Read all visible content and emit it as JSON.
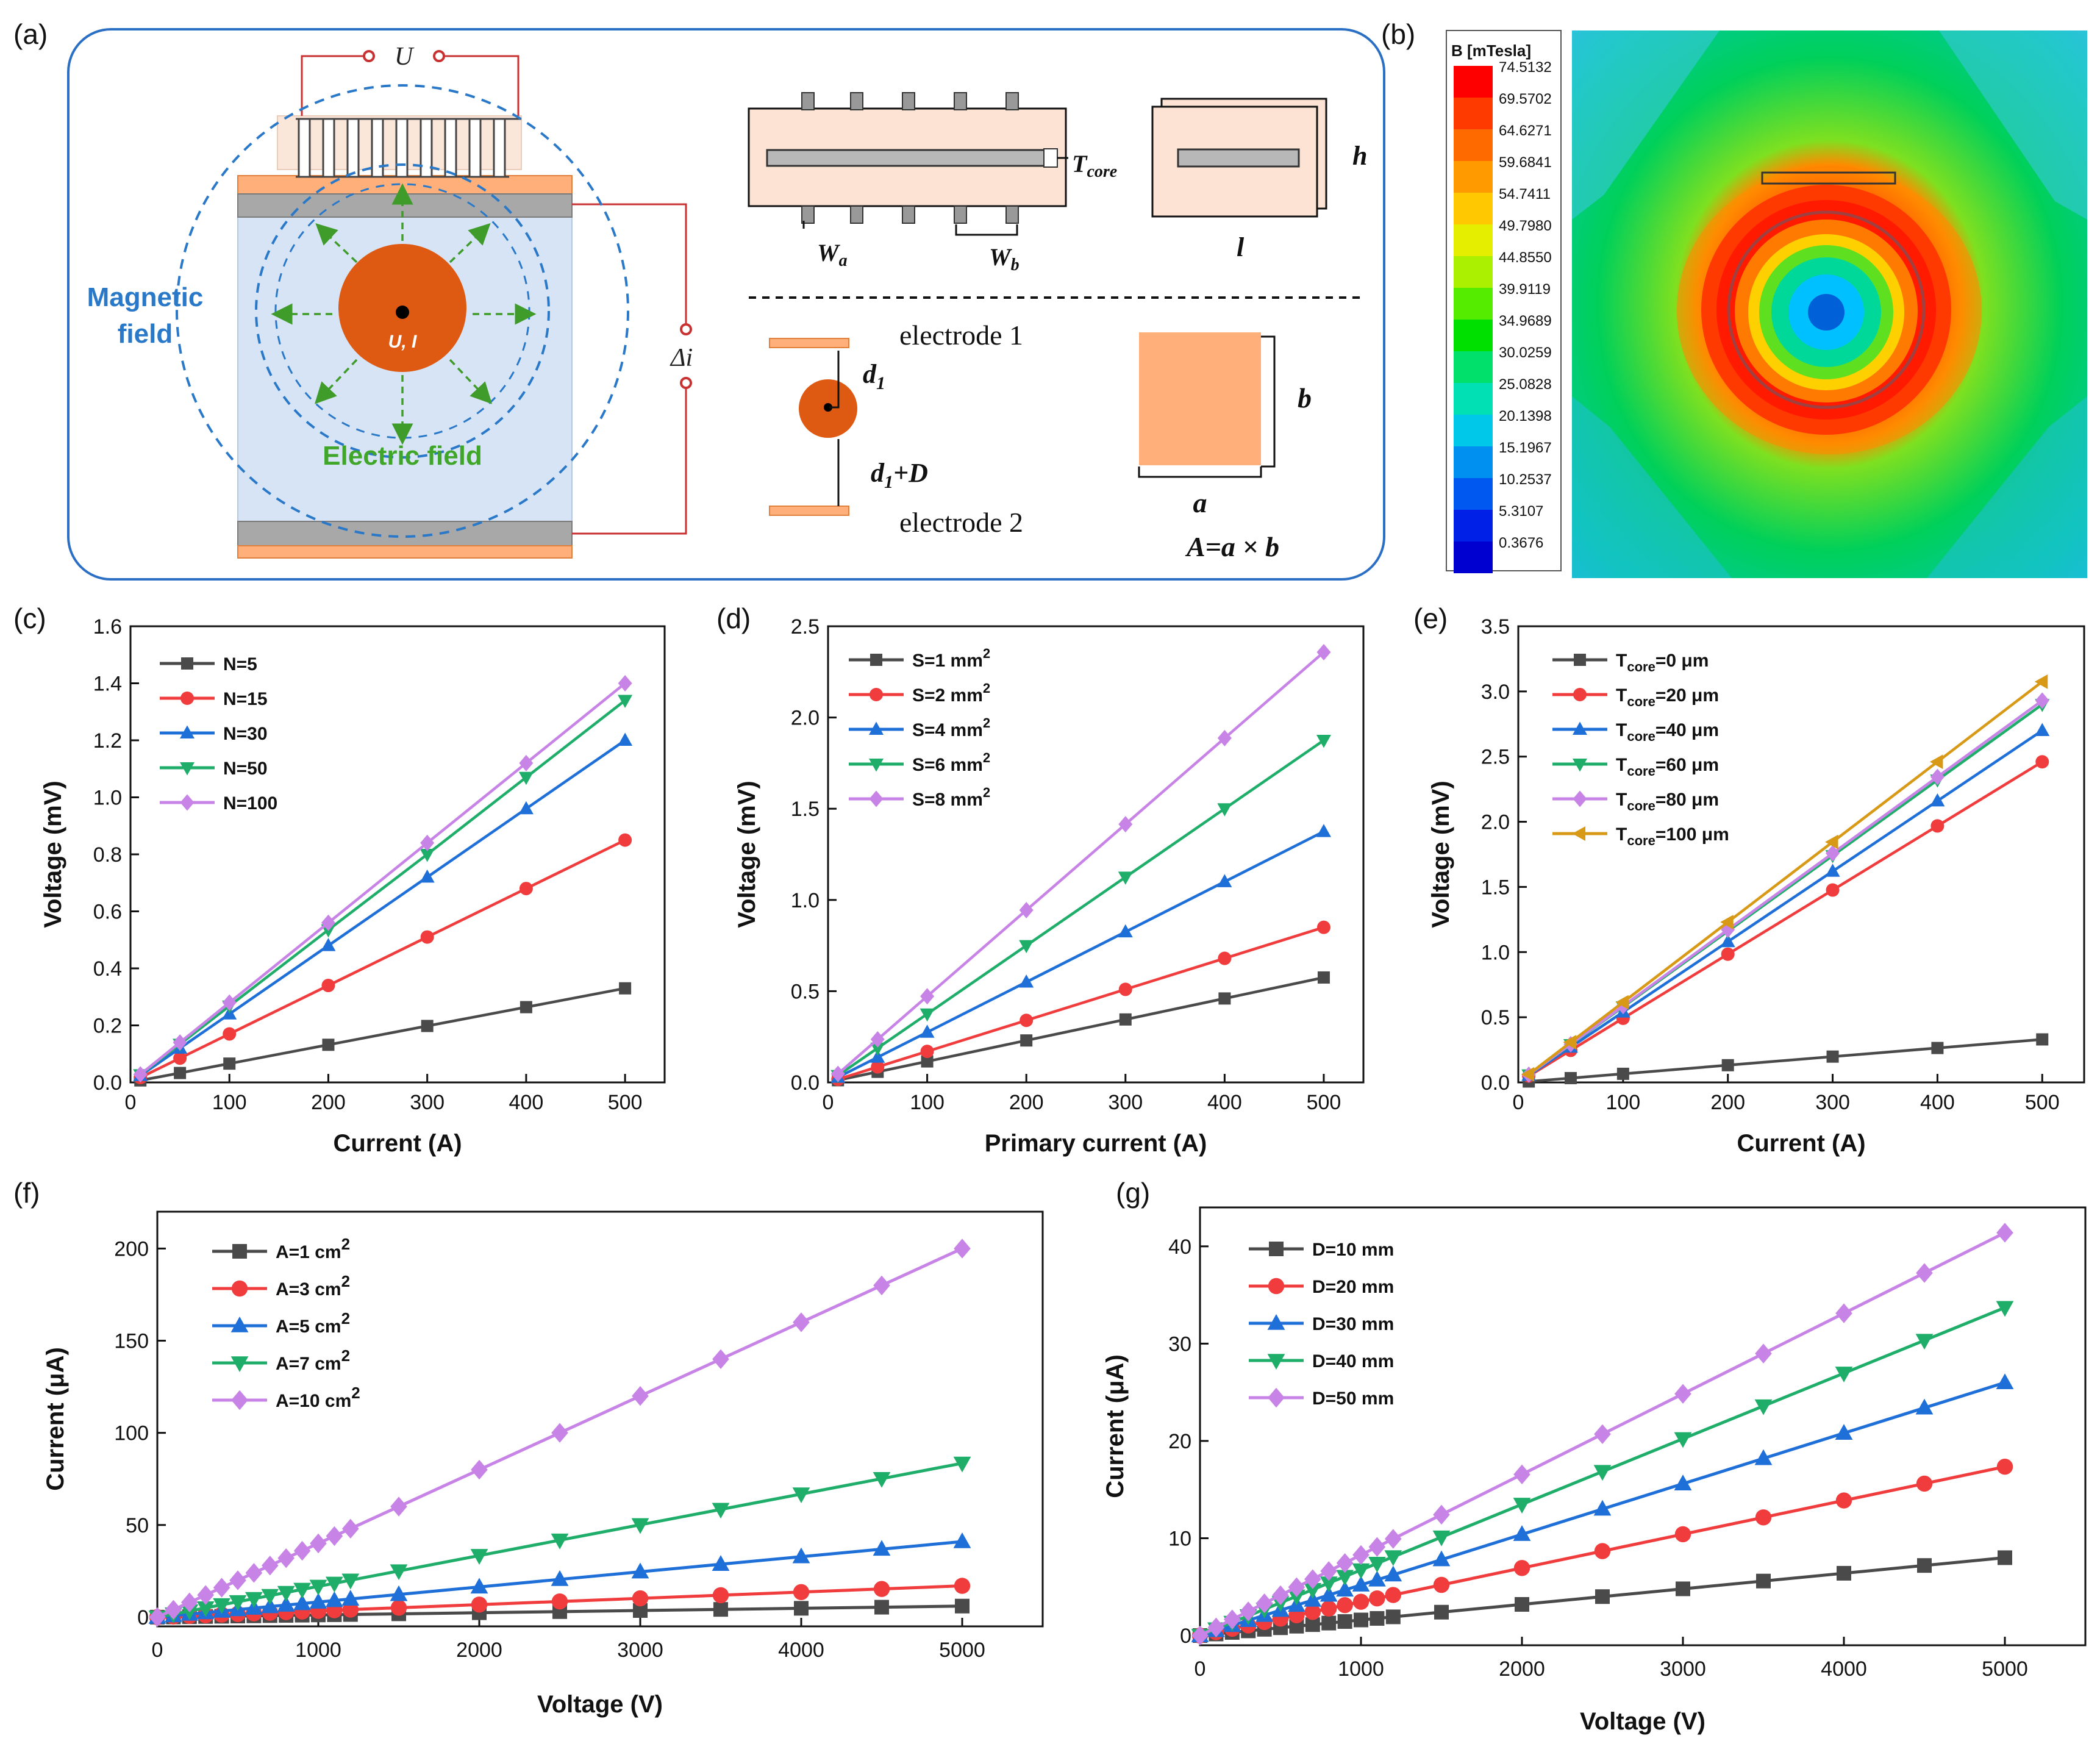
{
  "panel_labels": [
    "(a)",
    "(b)",
    "(c)",
    "(d)",
    "(e)",
    "(f)",
    "(g)"
  ],
  "schematic": {
    "voltage_label": "U",
    "magnetic_field_line1": "Magnetic",
    "magnetic_field_line2": "field",
    "electric_field_label": "Electric field",
    "conductor_label": "U, I",
    "delta_i_label": "Δi",
    "t_core_label": "T",
    "t_core_sub": "core",
    "wa_label": "W",
    "wa_sub": "a",
    "wb_label": "W",
    "wb_sub": "b",
    "h_label": "h",
    "l_label": "l",
    "electrode1_label": "electrode 1",
    "electrode2_label": "electrode 2",
    "d1_label": "d",
    "d1_sub": "1",
    "d1d_label": "d",
    "d1d_sub": "1",
    "d1d_suffix": "+D",
    "b_label": "b",
    "a_label": "a",
    "area_formula": "A=a × b"
  },
  "colorbar": {
    "title": "B [mTesla]",
    "labels": [
      "74.5132",
      "69.5702",
      "64.6271",
      "59.6841",
      "54.7411",
      "49.7980",
      "44.8550",
      "39.9119",
      "34.9689",
      "30.0259",
      "25.0828",
      "20.1398",
      "15.1967",
      "10.2537",
      "5.3107",
      "0.3676"
    ],
    "colors": [
      "#ff0000",
      "#ff3a00",
      "#ff6a00",
      "#ff9a00",
      "#ffc800",
      "#e6ee00",
      "#aaf000",
      "#55ec00",
      "#00e000",
      "#00e06a",
      "#00e0b4",
      "#00c8e8",
      "#0090f0",
      "#0058f0",
      "#0020e8",
      "#0000d0"
    ]
  },
  "chart_data": [
    {
      "id": "c",
      "type": "line",
      "xlabel": "Current (A)",
      "ylabel": "Voltage (mV)",
      "xlim": [
        0,
        540
      ],
      "ylim": [
        0,
        1.6
      ],
      "xticks": [
        "0",
        "100",
        "200",
        "300",
        "400",
        "500"
      ],
      "yticks": [
        "0.0",
        "0.2",
        "0.4",
        "0.6",
        "0.8",
        "1.0",
        "1.2",
        "1.4",
        "1.6"
      ],
      "x": [
        10,
        50,
        100,
        200,
        300,
        400,
        500
      ],
      "series": [
        {
          "name": "N=5",
          "color": "#4a4a4a",
          "marker": "square",
          "values": [
            0.007,
            0.033,
            0.066,
            0.132,
            0.198,
            0.264,
            0.33
          ]
        },
        {
          "name": "N=15",
          "color": "#f03c3c",
          "marker": "circle",
          "values": [
            0.017,
            0.085,
            0.17,
            0.34,
            0.51,
            0.68,
            0.85
          ]
        },
        {
          "name": "N=30",
          "color": "#1f6fd8",
          "marker": "triangle-up",
          "values": [
            0.024,
            0.12,
            0.24,
            0.48,
            0.72,
            0.96,
            1.2
          ]
        },
        {
          "name": "N=50",
          "color": "#1fae6a",
          "marker": "triangle-down",
          "values": [
            0.027,
            0.134,
            0.268,
            0.535,
            0.8,
            1.07,
            1.34
          ]
        },
        {
          "name": "N=100",
          "color": "#c883e6",
          "marker": "diamond",
          "values": [
            0.028,
            0.14,
            0.28,
            0.56,
            0.84,
            1.12,
            1.4
          ]
        }
      ]
    },
    {
      "id": "d",
      "type": "line",
      "xlabel": "Primary current (A)",
      "ylabel": "Voltage (mV)",
      "xlim": [
        0,
        540
      ],
      "ylim": [
        0,
        2.5
      ],
      "xticks": [
        "0",
        "100",
        "200",
        "300",
        "400",
        "500"
      ],
      "yticks": [
        "0.0",
        "0.5",
        "1.0",
        "1.5",
        "2.0",
        "2.5"
      ],
      "x": [
        10,
        50,
        100,
        200,
        300,
        400,
        500
      ],
      "series": [
        {
          "name": "S=1 mm",
          "sup": "2",
          "color": "#4a4a4a",
          "marker": "square",
          "values": [
            0.012,
            0.058,
            0.115,
            0.23,
            0.345,
            0.46,
            0.575
          ]
        },
        {
          "name": "S=2 mm",
          "sup": "2",
          "color": "#f03c3c",
          "marker": "circle",
          "values": [
            0.017,
            0.085,
            0.17,
            0.34,
            0.51,
            0.68,
            0.85
          ]
        },
        {
          "name": "S=4 mm",
          "sup": "2",
          "color": "#1f6fd8",
          "marker": "triangle-up",
          "values": [
            0.028,
            0.138,
            0.275,
            0.55,
            0.825,
            1.1,
            1.375
          ]
        },
        {
          "name": "S=6 mm",
          "sup": "2",
          "color": "#1fae6a",
          "marker": "triangle-down",
          "values": [
            0.038,
            0.188,
            0.375,
            0.75,
            1.125,
            1.5,
            1.875
          ]
        },
        {
          "name": "S=8 mm",
          "sup": "2",
          "color": "#c883e6",
          "marker": "diamond",
          "values": [
            0.047,
            0.236,
            0.472,
            0.944,
            1.415,
            1.887,
            2.358
          ]
        }
      ]
    },
    {
      "id": "e",
      "type": "line",
      "xlabel": "Current (A)",
      "ylabel": "Voltage (mV)",
      "xlim": [
        0,
        540
      ],
      "ylim": [
        0,
        3.5
      ],
      "xticks": [
        "0",
        "100",
        "200",
        "300",
        "400",
        "500"
      ],
      "yticks": [
        "0.0",
        "0.5",
        "1.0",
        "1.5",
        "2.0",
        "2.5",
        "3.0",
        "3.5"
      ],
      "x": [
        10,
        50,
        100,
        200,
        300,
        400,
        500
      ],
      "series": [
        {
          "name": "T",
          "sub": "core",
          "suffix": "=0 μm",
          "color": "#4a4a4a",
          "marker": "square",
          "values": [
            0.007,
            0.033,
            0.066,
            0.132,
            0.198,
            0.264,
            0.33
          ]
        },
        {
          "name": "T",
          "sub": "core",
          "suffix": "=20 μm",
          "color": "#f03c3c",
          "marker": "circle",
          "values": [
            0.049,
            0.246,
            0.492,
            0.984,
            1.476,
            1.968,
            2.46
          ]
        },
        {
          "name": "T",
          "sub": "core",
          "suffix": "=40 μm",
          "color": "#1f6fd8",
          "marker": "triangle-up",
          "values": [
            0.054,
            0.27,
            0.54,
            1.08,
            1.62,
            2.16,
            2.7
          ]
        },
        {
          "name": "T",
          "sub": "core",
          "suffix": "=60 μm",
          "color": "#1fae6a",
          "marker": "triangle-down",
          "values": [
            0.058,
            0.29,
            0.58,
            1.16,
            1.74,
            2.32,
            2.9
          ]
        },
        {
          "name": "T",
          "sub": "core",
          "suffix": "=80 μm",
          "color": "#c883e6",
          "marker": "diamond",
          "values": [
            0.059,
            0.293,
            0.586,
            1.172,
            1.758,
            2.344,
            2.93
          ]
        },
        {
          "name": "T",
          "sub": "core",
          "suffix": "=100 μm",
          "color": "#d89a16",
          "marker": "triangle-left",
          "values": [
            0.062,
            0.308,
            0.615,
            1.23,
            1.845,
            2.46,
            3.075
          ]
        }
      ]
    },
    {
      "id": "f",
      "type": "line",
      "xlabel": "Voltage (V)",
      "ylabel": "Current (μA)",
      "xlim": [
        0,
        5500
      ],
      "ylim": [
        -5,
        220
      ],
      "xticks": [
        "0",
        "1000",
        "2000",
        "3000",
        "4000",
        "5000"
      ],
      "yticks": [
        "0",
        "50",
        "100",
        "150",
        "200"
      ],
      "ytick_values": [
        0,
        50,
        100,
        150,
        200
      ],
      "x": [
        0,
        100,
        200,
        300,
        400,
        500,
        600,
        700,
        800,
        900,
        1000,
        1100,
        1200,
        1500,
        2000,
        2500,
        3000,
        3500,
        4000,
        4500,
        5000
      ],
      "series": [
        {
          "name": "A=1 cm",
          "sup": "2",
          "color": "#4a4a4a",
          "marker": "square",
          "slope": 0.0012
        },
        {
          "name": "A=3 cm",
          "sup": "2",
          "color": "#f03c3c",
          "marker": "circle",
          "slope": 0.0034
        },
        {
          "name": "A=5 cm",
          "sup": "2",
          "color": "#1f6fd8",
          "marker": "triangle-up",
          "slope": 0.0082
        },
        {
          "name": "A=7 cm",
          "sup": "2",
          "color": "#1fae6a",
          "marker": "triangle-down",
          "slope": 0.0167
        },
        {
          "name": "A=10 cm",
          "sup": "2",
          "color": "#c883e6",
          "marker": "diamond",
          "slope": 0.04
        }
      ]
    },
    {
      "id": "g",
      "type": "line",
      "xlabel": "Voltage (V)",
      "ylabel": "Current (μA)",
      "xlim": [
        0,
        5500
      ],
      "ylim": [
        -1,
        44
      ],
      "xticks": [
        "0",
        "1000",
        "2000",
        "3000",
        "4000",
        "5000"
      ],
      "yticks": [
        "0",
        "10",
        "20",
        "30",
        "40"
      ],
      "ytick_values": [
        0,
        10,
        20,
        30,
        40
      ],
      "x": [
        0,
        100,
        200,
        300,
        400,
        500,
        600,
        700,
        800,
        900,
        1000,
        1100,
        1200,
        1500,
        2000,
        2500,
        3000,
        3500,
        4000,
        4500,
        5000
      ],
      "series": [
        {
          "name": "D=10 mm",
          "color": "#4a4a4a",
          "marker": "square",
          "slope": 0.0016
        },
        {
          "name": "D=20 mm",
          "color": "#f03c3c",
          "marker": "circle",
          "slope": 0.00347
        },
        {
          "name": "D=30 mm",
          "color": "#1f6fd8",
          "marker": "triangle-up",
          "slope": 0.0052
        },
        {
          "name": "D=40 mm",
          "color": "#1fae6a",
          "marker": "triangle-down",
          "slope": 0.00674
        },
        {
          "name": "D=50 mm",
          "color": "#c883e6",
          "marker": "diamond",
          "slope": 0.00828
        }
      ]
    }
  ]
}
